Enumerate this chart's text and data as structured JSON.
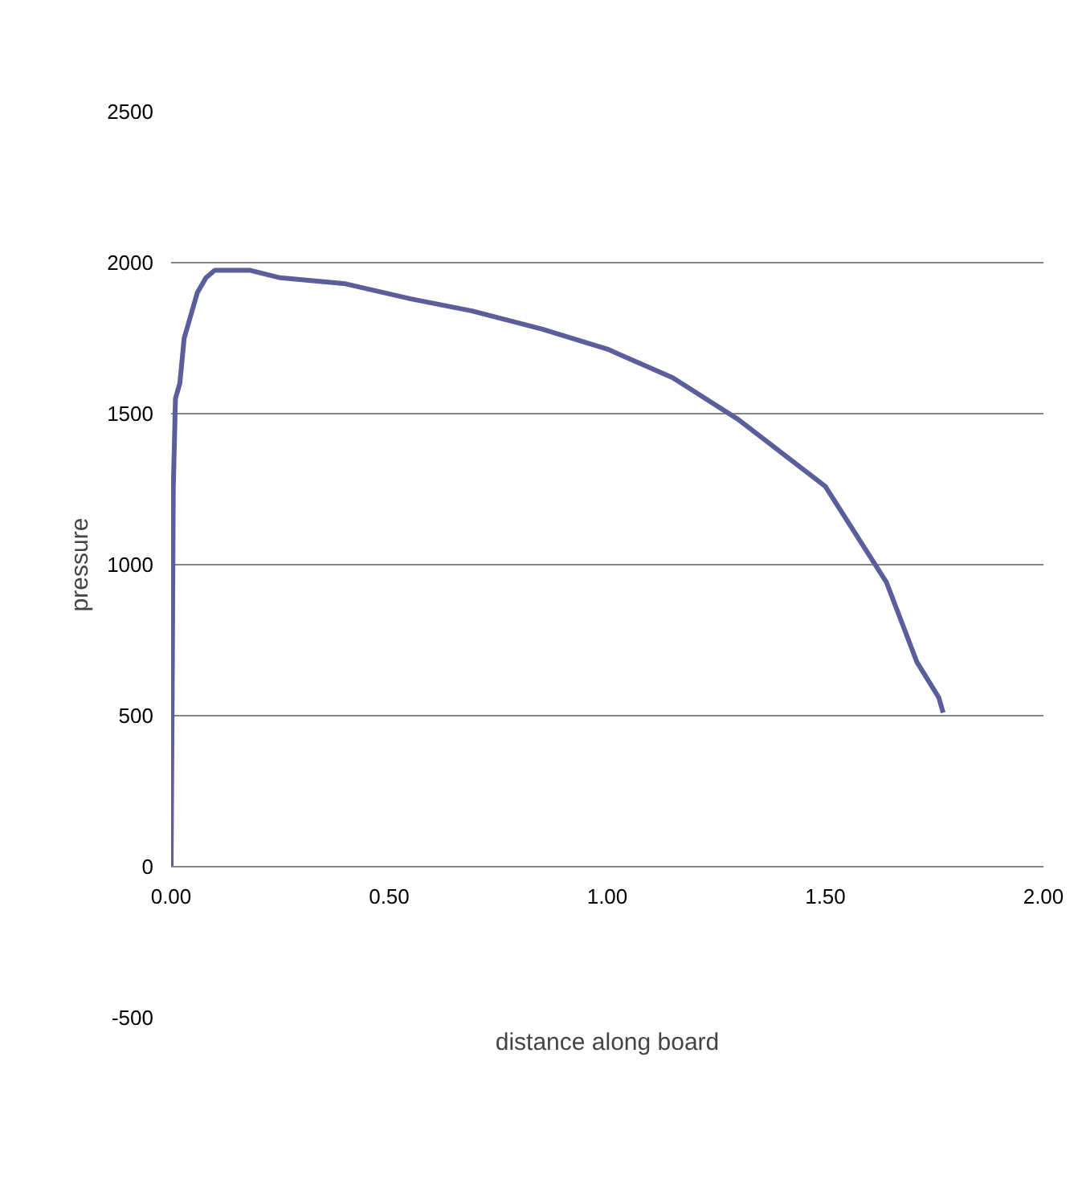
{
  "chart_data": {
    "type": "line",
    "xlabel": "distance along board",
    "ylabel": "pressure",
    "x": [
      0.0,
      0.003,
      0.005,
      0.01,
      0.02,
      0.03,
      0.06,
      0.08,
      0.1,
      0.18,
      0.25,
      0.4,
      0.55,
      0.69,
      0.85,
      1.0,
      1.15,
      1.3,
      1.5,
      1.64,
      1.71,
      1.76,
      1.77
    ],
    "series": [
      {
        "color": "#5a5e9a",
        "values": [
          0,
          700,
          1250,
          1550,
          1600,
          1750,
          1900,
          1950,
          1975,
          1975,
          1950,
          1930,
          1880,
          1840,
          1780,
          1714,
          1619,
          1481,
          1259,
          942,
          677,
          560,
          510
        ]
      }
    ],
    "xlim": [
      0,
      2
    ],
    "ylim": [
      -500,
      2500
    ],
    "xticks": [
      {
        "value": 0,
        "label": "0.00"
      },
      {
        "value": 0.5,
        "label": "0.50"
      },
      {
        "value": 1,
        "label": "1.00"
      },
      {
        "value": 1.5,
        "label": "1.50"
      },
      {
        "value": 2,
        "label": "2.00"
      }
    ],
    "yticks": [
      -500,
      0,
      500,
      1000,
      1500,
      2000,
      2500
    ],
    "grid": "y",
    "marker": "none",
    "line_style": "solid"
  }
}
